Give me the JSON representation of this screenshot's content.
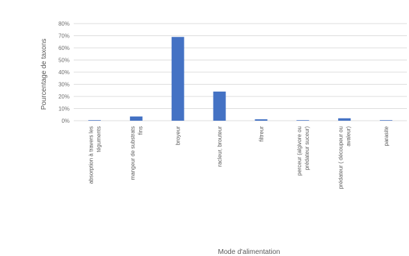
{
  "chart_data": {
    "type": "bar",
    "title": "",
    "xlabel": "Mode d'alimentation",
    "ylabel": "Pourcentage de taxons",
    "ylim": [
      0,
      80
    ],
    "yticks": [
      "0%",
      "10%",
      "20%",
      "30%",
      "40%",
      "50%",
      "60%",
      "70%",
      "80%"
    ],
    "categories": [
      [
        "absorption à travers les",
        "téguments"
      ],
      [
        "mangeur de substrats",
        "fins"
      ],
      [
        "broyeur"
      ],
      [
        "racleur, brouteur"
      ],
      [
        "filtreur"
      ],
      [
        "perceur (algivore ou",
        "prédateur suceur)"
      ],
      [
        "prédateur ( découpeur ou",
        "avaleur)"
      ],
      [
        "parasite"
      ]
    ],
    "values": [
      0.3,
      3.5,
      69,
      24,
      1.2,
      0.3,
      2,
      0.2
    ],
    "grid": true,
    "legend": "none",
    "colors": {
      "bar": "#4472c4",
      "grid": "#dcdcdc"
    }
  }
}
